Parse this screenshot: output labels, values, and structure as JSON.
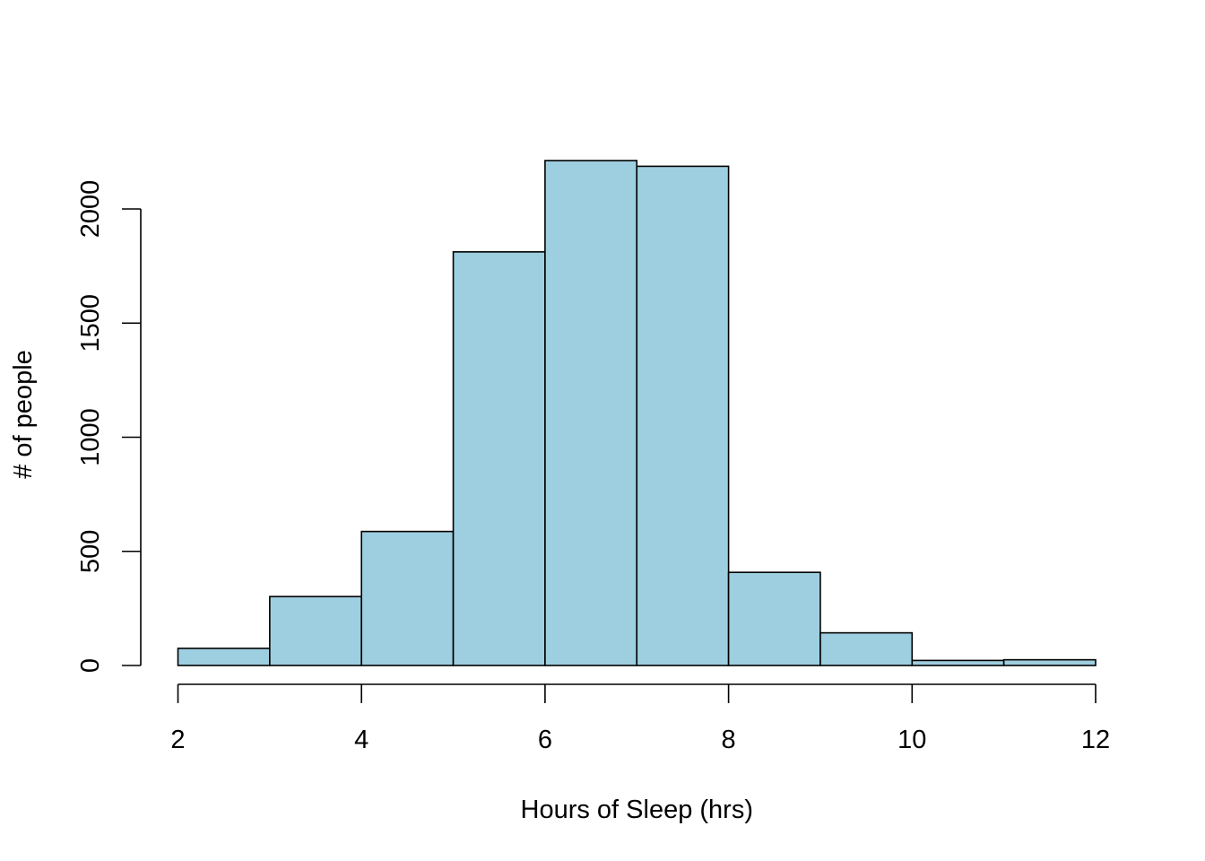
{
  "chart_data": {
    "type": "bar",
    "subtype": "histogram",
    "title": "",
    "xlabel": "Hours of Sleep (hrs)",
    "ylabel": "# of people",
    "bins": [
      {
        "x0": 2,
        "x1": 3,
        "count": 75
      },
      {
        "x0": 3,
        "x1": 4,
        "count": 302
      },
      {
        "x0": 4,
        "x1": 5,
        "count": 587
      },
      {
        "x0": 5,
        "x1": 6,
        "count": 1812
      },
      {
        "x0": 6,
        "x1": 7,
        "count": 2212
      },
      {
        "x0": 7,
        "x1": 8,
        "count": 2187
      },
      {
        "x0": 8,
        "x1": 9,
        "count": 408
      },
      {
        "x0": 9,
        "x1": 10,
        "count": 143
      },
      {
        "x0": 10,
        "x1": 11,
        "count": 22
      },
      {
        "x0": 11,
        "x1": 12,
        "count": 25
      }
    ],
    "xlim": [
      2,
      12
    ],
    "ylim": [
      0,
      2212
    ],
    "x_ticks": [
      "2",
      "4",
      "6",
      "8",
      "10",
      "12"
    ],
    "y_ticks": [
      "0",
      "500",
      "1000",
      "1500",
      "2000"
    ],
    "bar_color": "#9ECFE0",
    "border_color": "#000000",
    "grid": false,
    "legend": "none"
  }
}
